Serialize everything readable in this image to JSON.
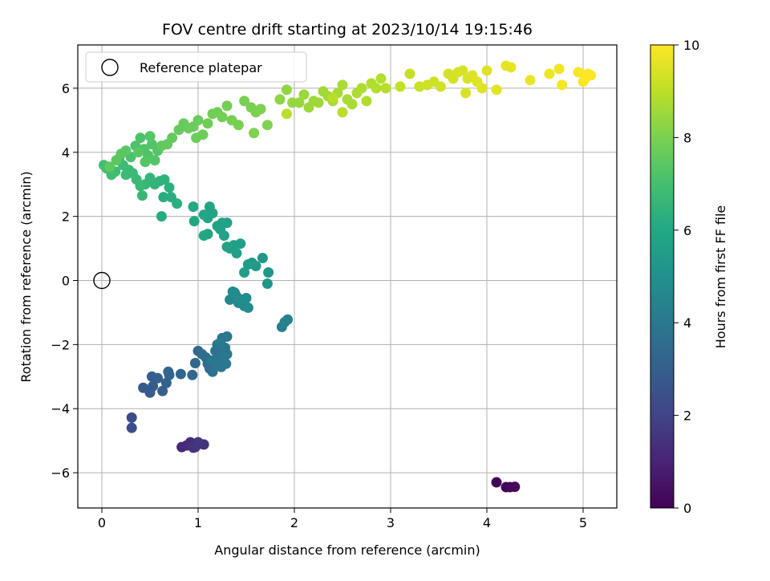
{
  "chart_data": {
    "type": "scatter",
    "title": "FOV centre drift starting at 2023/10/14 19:15:46",
    "xlabel": "Angular distance from reference (arcmin)",
    "ylabel": "Rotation from reference (arcmin)",
    "xlim": [
      -0.25,
      5.35
    ],
    "ylim": [
      -7.1,
      7.35
    ],
    "xticks": [
      0,
      1,
      2,
      3,
      4,
      5
    ],
    "yticks": [
      -6,
      -4,
      -2,
      0,
      2,
      4,
      6
    ],
    "grid": true,
    "legend": {
      "placement": "upper-left",
      "entries": [
        {
          "label": "Reference platepar",
          "marker": "open-circle"
        }
      ]
    },
    "reference_point": {
      "x": 0,
      "y": 0
    },
    "colorbar": {
      "label": "Hours from first FF file",
      "colormap": "viridis",
      "range": [
        0,
        10
      ],
      "ticks": [
        0,
        2,
        4,
        6,
        8,
        10
      ]
    },
    "points": [
      [
        4.1,
        -6.3,
        0.1
      ],
      [
        4.2,
        -6.45,
        0.15
      ],
      [
        4.29,
        -6.44,
        0.2
      ],
      [
        4.24,
        -6.45,
        0.25
      ],
      [
        0.83,
        -5.2,
        1.2
      ],
      [
        0.88,
        -5.15,
        1.25
      ],
      [
        0.92,
        -5.05,
        1.3
      ],
      [
        0.97,
        -5.2,
        1.35
      ],
      [
        1.02,
        -5.1,
        1.4
      ],
      [
        1.06,
        -5.12,
        1.45
      ],
      [
        0.95,
        -5.22,
        1.5
      ],
      [
        1.0,
        -5.05,
        1.55
      ],
      [
        0.31,
        -4.28,
        2.3
      ],
      [
        0.31,
        -4.6,
        2.35
      ],
      [
        0.43,
        -3.35,
        2.8
      ],
      [
        0.5,
        -3.5,
        2.85
      ],
      [
        0.53,
        -3.3,
        2.9
      ],
      [
        0.52,
        -3.0,
        2.95
      ],
      [
        0.58,
        -3.05,
        3.0
      ],
      [
        0.63,
        -3.45,
        3.05
      ],
      [
        0.67,
        -3.2,
        3.1
      ],
      [
        0.7,
        -2.95,
        3.15
      ],
      [
        0.69,
        -2.85,
        3.2
      ],
      [
        0.82,
        -2.92,
        3.25
      ],
      [
        0.94,
        -2.95,
        3.3
      ],
      [
        0.97,
        -2.58,
        3.4
      ],
      [
        1.0,
        -2.2,
        3.45
      ],
      [
        1.04,
        -2.3,
        3.5
      ],
      [
        1.08,
        -2.4,
        3.55
      ],
      [
        1.1,
        -2.6,
        3.6
      ],
      [
        1.12,
        -2.75,
        3.65
      ],
      [
        1.15,
        -2.85,
        3.7
      ],
      [
        1.17,
        -2.5,
        3.72
      ],
      [
        1.18,
        -2.2,
        3.75
      ],
      [
        1.2,
        -2.0,
        3.78
      ],
      [
        1.22,
        -2.35,
        3.8
      ],
      [
        1.24,
        -2.7,
        3.82
      ],
      [
        1.26,
        -2.55,
        3.85
      ],
      [
        1.28,
        -2.1,
        3.88
      ],
      [
        1.3,
        -2.3,
        3.9
      ],
      [
        1.25,
        -1.8,
        3.92
      ],
      [
        1.3,
        -1.75,
        3.95
      ],
      [
        1.14,
        -2.5,
        3.97
      ],
      [
        1.2,
        -2.65,
        4.0
      ],
      [
        1.27,
        -2.4,
        4.02
      ],
      [
        1.29,
        -2.6,
        4.05
      ],
      [
        1.23,
        -1.95,
        4.07
      ],
      [
        1.87,
        -1.45,
        4.3
      ],
      [
        1.93,
        -1.22,
        4.35
      ],
      [
        1.9,
        -1.3,
        4.4
      ],
      [
        1.33,
        -0.6,
        4.6
      ],
      [
        1.36,
        -0.35,
        4.62
      ],
      [
        1.4,
        -0.5,
        4.65
      ],
      [
        1.42,
        -0.7,
        4.68
      ],
      [
        1.45,
        -0.6,
        4.7
      ],
      [
        1.48,
        -0.8,
        4.72
      ],
      [
        1.5,
        -0.55,
        4.75
      ],
      [
        1.52,
        -0.85,
        4.78
      ],
      [
        1.38,
        -0.38,
        4.8
      ],
      [
        1.44,
        -0.62,
        4.82
      ],
      [
        1.47,
        -0.68,
        4.85
      ],
      [
        1.72,
        -0.1,
        5.2
      ],
      [
        1.73,
        0.25,
        5.25
      ],
      [
        1.67,
        0.7,
        5.3
      ],
      [
        1.6,
        0.45,
        5.35
      ],
      [
        1.56,
        0.55,
        5.4
      ],
      [
        1.52,
        0.5,
        5.45
      ],
      [
        1.48,
        0.25,
        5.5
      ],
      [
        1.44,
        1.15,
        5.55
      ],
      [
        1.4,
        0.85,
        5.6
      ],
      [
        1.37,
        1.1,
        5.62
      ],
      [
        1.33,
        1.0,
        5.65
      ],
      [
        1.3,
        1.05,
        5.68
      ],
      [
        1.3,
        1.8,
        5.7
      ],
      [
        1.25,
        1.8,
        5.72
      ],
      [
        1.27,
        1.4,
        5.75
      ],
      [
        1.23,
        1.6,
        5.78
      ],
      [
        1.2,
        1.7,
        5.8
      ],
      [
        1.12,
        2.3,
        5.82
      ],
      [
        1.15,
        2.1,
        5.85
      ],
      [
        1.1,
        1.95,
        5.88
      ],
      [
        1.06,
        2.05,
        5.9
      ],
      [
        1.1,
        1.45,
        5.92
      ],
      [
        1.06,
        1.4,
        5.95
      ],
      [
        0.96,
        1.85,
        5.97
      ],
      [
        0.95,
        2.3,
        6.0
      ],
      [
        0.62,
        2.0,
        6.15
      ],
      [
        0.64,
        2.6,
        6.2
      ],
      [
        0.72,
        2.6,
        6.25
      ],
      [
        0.78,
        2.4,
        6.3
      ],
      [
        0.7,
        2.9,
        6.35
      ],
      [
        0.65,
        3.15,
        6.4
      ],
      [
        0.6,
        3.1,
        6.45
      ],
      [
        0.55,
        3.0,
        6.5
      ],
      [
        0.5,
        3.2,
        6.55
      ],
      [
        0.45,
        3.0,
        6.6
      ],
      [
        0.42,
        2.65,
        6.65
      ],
      [
        0.4,
        2.95,
        6.7
      ],
      [
        0.36,
        3.15,
        6.72
      ],
      [
        0.32,
        3.35,
        6.75
      ],
      [
        0.28,
        3.45,
        6.78
      ],
      [
        0.25,
        3.3,
        6.8
      ],
      [
        0.22,
        3.6,
        6.82
      ],
      [
        0.18,
        3.8,
        6.85
      ],
      [
        0.14,
        3.4,
        6.88
      ],
      [
        0.1,
        3.3,
        6.9
      ],
      [
        0.05,
        3.5,
        6.92
      ],
      [
        0.02,
        3.6,
        6.95
      ],
      [
        0.3,
        3.85,
        7.1
      ],
      [
        0.35,
        4.2,
        7.15
      ],
      [
        0.4,
        4.45,
        7.18
      ],
      [
        0.44,
        4.1,
        7.2
      ],
      [
        0.48,
        3.9,
        7.22
      ],
      [
        0.52,
        4.25,
        7.25
      ],
      [
        0.55,
        3.75,
        7.28
      ],
      [
        0.58,
        4.05,
        7.3
      ],
      [
        0.5,
        4.5,
        7.32
      ],
      [
        0.45,
        3.7,
        7.35
      ],
      [
        0.38,
        4.0,
        7.38
      ],
      [
        0.25,
        4.05,
        7.4
      ],
      [
        0.2,
        3.95,
        7.42
      ],
      [
        0.15,
        3.75,
        7.45
      ],
      [
        0.08,
        3.55,
        7.48
      ],
      [
        0.62,
        4.2,
        7.55
      ],
      [
        0.68,
        4.25,
        7.58
      ],
      [
        0.73,
        4.45,
        7.6
      ],
      [
        0.8,
        4.7,
        7.62
      ],
      [
        0.85,
        4.9,
        7.65
      ],
      [
        0.9,
        4.75,
        7.68
      ],
      [
        0.95,
        4.8,
        7.7
      ],
      [
        1.0,
        5.0,
        7.72
      ],
      [
        0.98,
        4.45,
        7.75
      ],
      [
        1.05,
        4.55,
        7.78
      ],
      [
        1.1,
        4.9,
        7.8
      ],
      [
        1.15,
        5.2,
        7.82
      ],
      [
        1.2,
        5.25,
        7.85
      ],
      [
        1.25,
        5.1,
        7.88
      ],
      [
        1.3,
        5.45,
        7.9
      ],
      [
        1.35,
        5.0,
        7.92
      ],
      [
        1.42,
        4.85,
        7.95
      ],
      [
        1.48,
        5.6,
        7.97
      ],
      [
        1.55,
        5.4,
        8.0
      ],
      [
        1.6,
        5.25,
        8.02
      ],
      [
        1.65,
        5.35,
        8.05
      ],
      [
        1.72,
        4.85,
        8.07
      ],
      [
        1.58,
        4.6,
        8.1
      ],
      [
        1.85,
        5.65,
        8.3
      ],
      [
        1.92,
        5.95,
        8.35
      ],
      [
        1.98,
        5.55,
        8.4
      ],
      [
        2.05,
        5.55,
        8.45
      ],
      [
        2.1,
        5.8,
        8.48
      ],
      [
        2.15,
        5.4,
        8.5
      ],
      [
        2.2,
        5.6,
        8.52
      ],
      [
        2.25,
        5.55,
        8.55
      ],
      [
        2.3,
        5.9,
        8.58
      ],
      [
        2.35,
        5.75,
        8.6
      ],
      [
        2.4,
        5.6,
        8.62
      ],
      [
        2.45,
        5.85,
        8.65
      ],
      [
        2.5,
        6.1,
        8.68
      ],
      [
        2.55,
        5.65,
        8.7
      ],
      [
        2.6,
        5.5,
        8.72
      ],
      [
        2.65,
        5.85,
        8.75
      ],
      [
        2.7,
        6.0,
        8.78
      ],
      [
        2.75,
        5.6,
        8.8
      ],
      [
        2.8,
        6.15,
        8.82
      ],
      [
        2.85,
        6.0,
        8.85
      ],
      [
        2.9,
        6.3,
        8.88
      ],
      [
        2.95,
        6.0,
        8.9
      ],
      [
        2.5,
        5.25,
        8.92
      ],
      [
        2.4,
        5.7,
        8.95
      ],
      [
        1.92,
        5.2,
        8.97
      ],
      [
        3.1,
        6.05,
        9.1
      ],
      [
        3.2,
        6.45,
        9.15
      ],
      [
        3.3,
        6.05,
        9.2
      ],
      [
        3.38,
        6.1,
        9.25
      ],
      [
        3.45,
        6.2,
        9.28
      ],
      [
        3.52,
        6.05,
        9.3
      ],
      [
        3.6,
        6.45,
        9.32
      ],
      [
        3.65,
        6.3,
        9.35
      ],
      [
        3.7,
        6.5,
        9.38
      ],
      [
        3.75,
        6.55,
        9.4
      ],
      [
        3.78,
        5.85,
        9.42
      ],
      [
        3.8,
        6.3,
        9.45
      ],
      [
        3.85,
        6.4,
        9.48
      ],
      [
        3.9,
        6.2,
        9.5
      ],
      [
        3.95,
        6.0,
        9.52
      ],
      [
        4.0,
        6.55,
        9.55
      ],
      [
        4.1,
        5.95,
        9.58
      ],
      [
        4.2,
        6.7,
        9.62
      ],
      [
        4.25,
        6.65,
        9.65
      ],
      [
        4.45,
        6.25,
        9.7
      ],
      [
        4.65,
        6.45,
        9.75
      ],
      [
        4.75,
        6.6,
        9.8
      ],
      [
        4.78,
        6.1,
        9.85
      ],
      [
        4.95,
        6.5,
        9.9
      ],
      [
        5.02,
        6.3,
        9.93
      ],
      [
        5.05,
        6.45,
        9.96
      ],
      [
        5.08,
        6.4,
        9.98
      ],
      [
        5.0,
        6.2,
        9.99
      ]
    ]
  }
}
